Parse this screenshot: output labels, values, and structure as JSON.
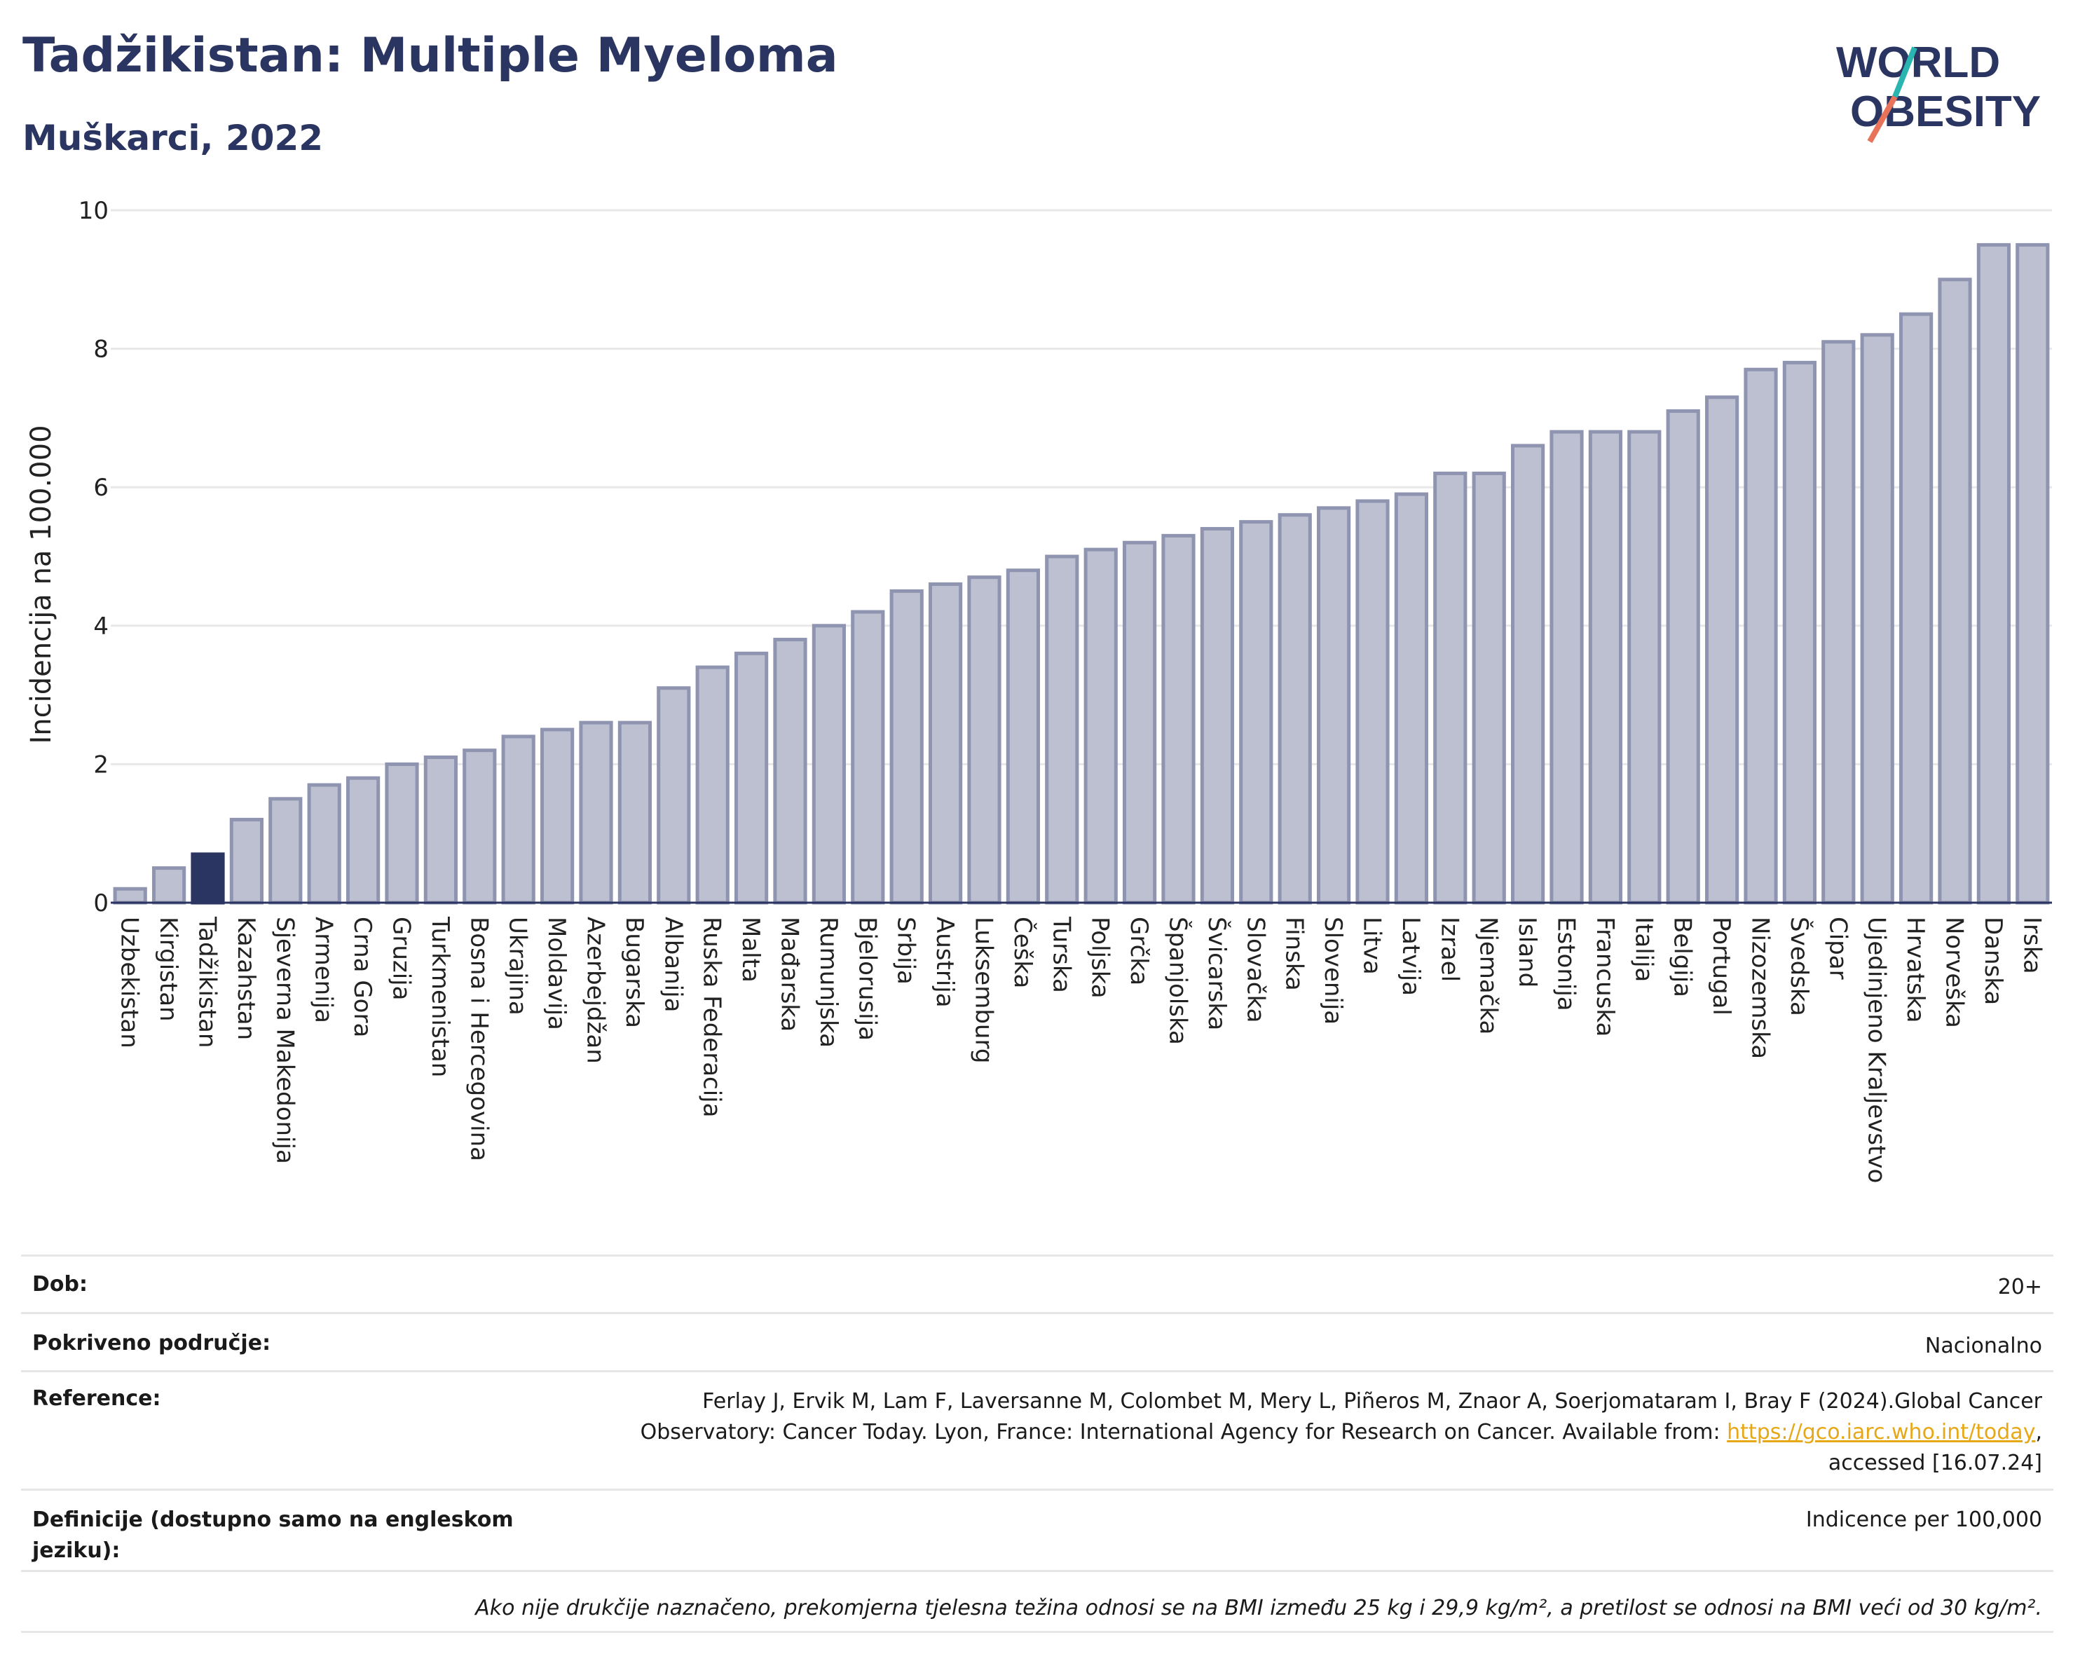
{
  "header": {
    "title": "Tadžikistan: Multiple Myeloma",
    "subtitle": "Muškarci, 2022"
  },
  "logo": {
    "line1": "WORLD",
    "line2": "OBESITY",
    "accent_color": "#e8735a",
    "accent2_color": "#2bb5b0"
  },
  "colors": {
    "bar": "#bcc0d0",
    "bar_stroke": "#8f94b0",
    "highlight": "#2b3561",
    "title": "#2b3561",
    "link": "#e6a817"
  },
  "chart_data": {
    "type": "bar",
    "title": "",
    "xlabel": "",
    "ylabel": "Incidencija na 100.000",
    "ylim": [
      0,
      10
    ],
    "yticks": [
      0,
      2,
      4,
      6,
      8,
      10
    ],
    "grid": true,
    "highlight": "Tadžikistan",
    "categories": [
      "Uzbekistan",
      "Kirgistan",
      "Tadžikistan",
      "Kazahstan",
      "Sjeverna Makedonija",
      "Armenija",
      "Crna Gora",
      "Gruzija",
      "Turkmenistan",
      "Bosna i Hercegovina",
      "Ukrajina",
      "Moldavija",
      "Azerbejdžan",
      "Bugarska",
      "Albanija",
      "Ruska Federacija",
      "Malta",
      "Mađarska",
      "Rumunjska",
      "Bjelorusija",
      "Srbija",
      "Austrija",
      "Luksemburg",
      "Češka",
      "Turska",
      "Poljska",
      "Grčka",
      "Španjolska",
      "Švicarska",
      "Slovačka",
      "Finska",
      "Slovenija",
      "Litva",
      "Latvija",
      "Izrael",
      "Njemačka",
      "Island",
      "Estonija",
      "Francuska",
      "Italija",
      "Belgija",
      "Portugal",
      "Nizozemska",
      "Švedska",
      "Cipar",
      "Ujedinjeno Kraljevstvo",
      "Hrvatska",
      "Norveška",
      "Danska",
      "Irska"
    ],
    "values": [
      0.2,
      0.5,
      0.7,
      1.2,
      1.5,
      1.7,
      1.8,
      2.0,
      2.1,
      2.2,
      2.4,
      2.5,
      2.6,
      2.6,
      3.1,
      3.4,
      3.6,
      3.8,
      4.0,
      4.2,
      4.5,
      4.6,
      4.7,
      4.8,
      5.0,
      5.1,
      5.2,
      5.3,
      5.4,
      5.5,
      5.6,
      5.7,
      5.8,
      5.9,
      6.2,
      6.2,
      6.6,
      6.8,
      6.8,
      6.8,
      7.1,
      7.3,
      7.7,
      7.8,
      8.1,
      8.2,
      8.5,
      9.0,
      9.5,
      9.5
    ]
  },
  "info": {
    "age_label": "Dob:",
    "age_value": "20+",
    "coverage_label": "Pokriveno područje:",
    "coverage_value": "Nacionalno",
    "ref_label": "Reference:",
    "ref_text_1": "Ferlay J, Ervik M, Lam F, Laversanne M, Colombet M, Mery L, Piñeros M, Znaor A, Soerjomataram I, Bray F (2024).Global Cancer Observatory: Cancer Today. Lyon, France: International Agency for Research on Cancer. Available from: ",
    "ref_link": "https://gco.iarc.who.int/today",
    "ref_text_2": ", accessed [16.07.24]",
    "def_label": "Definicije (dostupno samo na engleskom jeziku):",
    "def_value": "Indicence per 100,000",
    "note": "Ako nije drukčije naznačeno, prekomjerna tjelesna težina odnosi se na BMI između 25 kg i 29,9 kg/m², a pretilost se odnosi na BMI veći od 30 kg/m²."
  }
}
